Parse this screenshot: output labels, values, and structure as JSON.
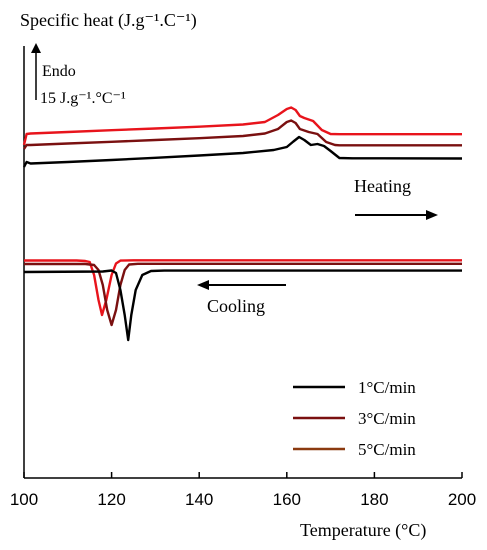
{
  "chart_data": {
    "type": "line",
    "ylabel": "Specific heat (J.g⁻¹.C⁻¹)",
    "xlabel": "Temperature (°C)",
    "xlim": [
      100,
      200
    ],
    "xticks": [
      "100",
      "120",
      "140",
      "160",
      "180",
      "200"
    ],
    "y_scale_label_line1": "Endo",
    "y_scale_label_line2": "15 J.g⁻¹.°C⁻¹",
    "y_scale_value": 15,
    "grid": false,
    "legend_position": "bottom-right",
    "annotations": {
      "heating": "Heating",
      "cooling": "Cooling"
    },
    "colors": {
      "1": "#000000",
      "3": "#7a1010",
      "5": "#e8141c",
      "5_legend": "#8b3a10"
    },
    "legend": [
      {
        "label": "1°C/min",
        "color": "#000000"
      },
      {
        "label": "3°C/min",
        "color": "#7a1010"
      },
      {
        "label": "5°C/min",
        "color": "#8b3a10"
      }
    ],
    "heating_curves": [
      {
        "rate": "5",
        "color": "#e8141c",
        "points": [
          [
            100,
            0
          ],
          [
            100.6,
            11
          ],
          [
            101.5,
            11.5
          ],
          [
            110,
            13
          ],
          [
            120,
            14.8
          ],
          [
            130,
            16.5
          ],
          [
            140,
            18.3
          ],
          [
            150,
            20.5
          ],
          [
            155,
            23
          ],
          [
            158,
            30
          ],
          [
            160,
            36
          ],
          [
            161,
            37.5
          ],
          [
            162,
            35
          ],
          [
            163,
            29
          ],
          [
            164,
            27
          ],
          [
            166,
            24
          ],
          [
            168,
            15
          ],
          [
            170,
            11
          ],
          [
            172,
            10.8
          ],
          [
            180,
            10.8
          ],
          [
            200,
            10.8
          ]
        ]
      },
      {
        "rate": "3",
        "color": "#7a1010",
        "points": [
          [
            100,
            -4
          ],
          [
            100.6,
            0
          ],
          [
            101.5,
            0
          ],
          [
            110,
            1.5
          ],
          [
            120,
            3.2
          ],
          [
            130,
            5
          ],
          [
            140,
            6.8
          ],
          [
            150,
            9
          ],
          [
            155,
            11.5
          ],
          [
            158,
            16
          ],
          [
            160,
            23
          ],
          [
            161,
            24.5
          ],
          [
            162,
            22
          ],
          [
            163,
            16
          ],
          [
            165,
            13
          ],
          [
            167,
            11
          ],
          [
            169,
            3
          ],
          [
            171,
            0
          ],
          [
            172,
            -0.3
          ],
          [
            180,
            -0.3
          ],
          [
            200,
            -0.3
          ]
        ]
      },
      {
        "rate": "1",
        "color": "#000000",
        "points": [
          [
            100,
            -22
          ],
          [
            100.6,
            -17
          ],
          [
            101.5,
            -18.5
          ],
          [
            110,
            -17
          ],
          [
            120,
            -15
          ],
          [
            130,
            -12.8
          ],
          [
            140,
            -10.5
          ],
          [
            150,
            -8
          ],
          [
            157,
            -5
          ],
          [
            160,
            -2
          ],
          [
            161.5,
            3.5
          ],
          [
            162.8,
            8
          ],
          [
            164,
            5
          ],
          [
            165.5,
            0
          ],
          [
            167,
            1
          ],
          [
            168.5,
            -1
          ],
          [
            170,
            -6
          ],
          [
            172,
            -13
          ],
          [
            175,
            -13.3
          ],
          [
            200,
            -13.5
          ]
        ]
      }
    ],
    "cooling_curves": [
      {
        "rate": "5",
        "color": "#e8141c",
        "points": [
          [
            100,
            -45.5
          ],
          [
            112,
            -45.5
          ],
          [
            114,
            -46
          ],
          [
            115,
            -47
          ],
          [
            116,
            -60
          ],
          [
            117,
            -85
          ],
          [
            117.8,
            -100
          ],
          [
            118.8,
            -85
          ],
          [
            120,
            -60
          ],
          [
            121,
            -48.5
          ],
          [
            122,
            -45.6
          ],
          [
            125,
            -45.3
          ],
          [
            200,
            -45.3
          ]
        ]
      },
      {
        "rate": "3",
        "color": "#7a1010",
        "points": [
          [
            100,
            -49
          ],
          [
            114,
            -49
          ],
          [
            116,
            -50
          ],
          [
            117,
            -55
          ],
          [
            118,
            -70
          ],
          [
            119,
            -95
          ],
          [
            120,
            -110
          ],
          [
            121,
            -95
          ],
          [
            122,
            -70
          ],
          [
            123,
            -55
          ],
          [
            124,
            -49.5
          ],
          [
            126,
            -48.8
          ],
          [
            200,
            -48.8
          ]
        ]
      },
      {
        "rate": "1",
        "color": "#000000",
        "points": [
          [
            100,
            -57
          ],
          [
            118,
            -56.5
          ],
          [
            120,
            -55.5
          ],
          [
            121,
            -58
          ],
          [
            122,
            -75
          ],
          [
            123,
            -100
          ],
          [
            123.8,
            -125
          ],
          [
            124.5,
            -100
          ],
          [
            125.5,
            -75
          ],
          [
            127,
            -60
          ],
          [
            129,
            -56
          ],
          [
            132,
            -55.6
          ],
          [
            200,
            -55.6
          ]
        ]
      }
    ]
  }
}
